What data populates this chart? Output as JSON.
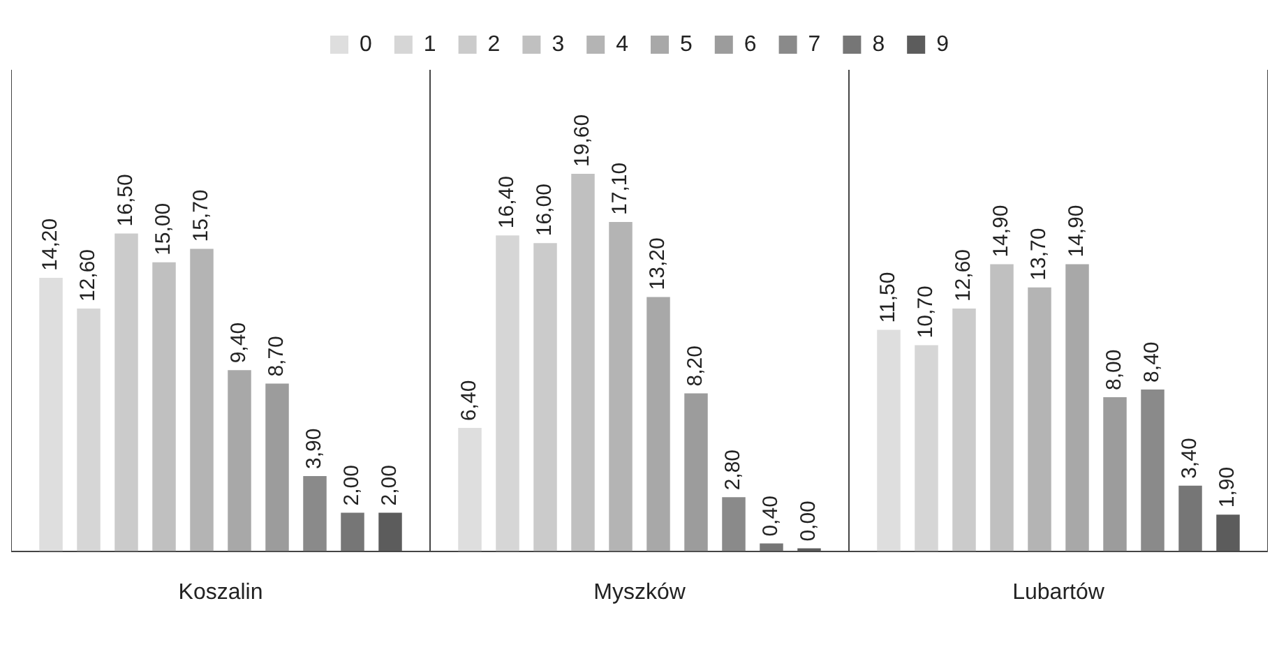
{
  "chart_data": {
    "type": "bar",
    "categories": [
      "Koszalin",
      "Myszków",
      "Lubartów"
    ],
    "series": [
      {
        "name": "0",
        "color": "#dedede",
        "values": [
          14.2,
          6.4,
          11.5
        ],
        "value_labels": [
          "14,20",
          "6,40",
          "11,50"
        ]
      },
      {
        "name": "1",
        "color": "#d6d6d6",
        "values": [
          12.6,
          16.4,
          10.7
        ],
        "value_labels": [
          "12,60",
          "16,40",
          "10,70"
        ]
      },
      {
        "name": "2",
        "color": "#cbcbcb",
        "values": [
          16.5,
          16.0,
          12.6
        ],
        "value_labels": [
          "16,50",
          "16,00",
          "12,60"
        ]
      },
      {
        "name": "3",
        "color": "#c0c0c0",
        "values": [
          15.0,
          19.6,
          14.9
        ],
        "value_labels": [
          "15,00",
          "19,60",
          "14,90"
        ]
      },
      {
        "name": "4",
        "color": "#b4b4b4",
        "values": [
          15.7,
          17.1,
          13.7
        ],
        "value_labels": [
          "15,70",
          "17,10",
          "13,70"
        ]
      },
      {
        "name": "5",
        "color": "#a8a8a8",
        "values": [
          9.4,
          13.2,
          14.9
        ],
        "value_labels": [
          "9,40",
          "13,20",
          "14,90"
        ]
      },
      {
        "name": "6",
        "color": "#9c9c9c",
        "values": [
          8.7,
          8.2,
          8.0
        ],
        "value_labels": [
          "8,70",
          "8,20",
          "8,00"
        ]
      },
      {
        "name": "7",
        "color": "#8a8a8a",
        "values": [
          3.9,
          2.8,
          8.4
        ],
        "value_labels": [
          "3,90",
          "2,80",
          "8,40"
        ]
      },
      {
        "name": "8",
        "color": "#767676",
        "values": [
          2.0,
          0.4,
          3.4
        ],
        "value_labels": [
          "2,00",
          "0,40",
          "3,40"
        ]
      },
      {
        "name": "9",
        "color": "#5c5c5c",
        "values": [
          2.0,
          0.0,
          1.9
        ],
        "value_labels": [
          "2,00",
          "0,00",
          "1,90"
        ]
      }
    ],
    "ylim": [
      0,
      25
    ],
    "legend": "top",
    "grid": "x"
  }
}
